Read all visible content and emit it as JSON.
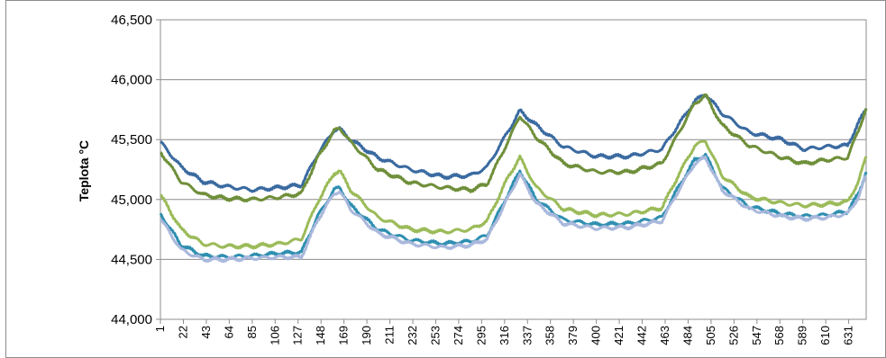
{
  "chart_data": {
    "type": "line",
    "ylabel": "Teplota °C",
    "ylim": [
      44.0,
      46.5
    ],
    "yticks": [
      "44,000",
      "44,500",
      "45,000",
      "45,500",
      "46,000",
      "46,500"
    ],
    "xlim": [
      1,
      647
    ],
    "xticks": [
      "1",
      "22",
      "43",
      "64",
      "85",
      "106",
      "127",
      "148",
      "169",
      "190",
      "211",
      "232",
      "253",
      "274",
      "295",
      "316",
      "337",
      "358",
      "379",
      "400",
      "421",
      "442",
      "463",
      "484",
      "505",
      "526",
      "547",
      "568",
      "589",
      "610",
      "631"
    ],
    "grid": "horizontal",
    "colors": {
      "series_1": "#3a6aa0",
      "series_2": "#6f8f3a",
      "series_3": "#9bbb59",
      "series_4": "#2f8fb0",
      "series_5": "#a9b8dc",
      "grid": "#8c8c8c",
      "frame": "#8c8c8c"
    },
    "series": [
      {
        "color_key": "series_1",
        "x": [
          1,
          20,
          40,
          60,
          85,
          110,
          130,
          145,
          160,
          165,
          175,
          200,
          230,
          260,
          285,
          300,
          320,
          330,
          345,
          370,
          400,
          430,
          460,
          475,
          490,
          500,
          515,
          540,
          570,
          590,
          610,
          630,
          640,
          647
        ],
        "values": [
          45.48,
          45.27,
          45.15,
          45.11,
          45.08,
          45.1,
          45.12,
          45.38,
          45.58,
          45.59,
          45.5,
          45.35,
          45.25,
          45.19,
          45.2,
          45.27,
          45.58,
          45.74,
          45.62,
          45.44,
          45.36,
          45.36,
          45.42,
          45.62,
          45.82,
          45.88,
          45.72,
          45.56,
          45.5,
          45.42,
          45.44,
          45.45,
          45.64,
          45.76
        ]
      },
      {
        "color_key": "series_2",
        "x": [
          1,
          20,
          40,
          60,
          85,
          110,
          130,
          145,
          160,
          165,
          175,
          200,
          230,
          260,
          285,
          300,
          320,
          330,
          345,
          370,
          400,
          430,
          460,
          475,
          490,
          500,
          515,
          540,
          570,
          590,
          610,
          630,
          640,
          647
        ],
        "values": [
          45.4,
          45.15,
          45.04,
          45.01,
          45.0,
          45.02,
          45.05,
          45.35,
          45.57,
          45.6,
          45.48,
          45.25,
          45.14,
          45.1,
          45.08,
          45.13,
          45.5,
          45.7,
          45.52,
          45.3,
          45.23,
          45.23,
          45.3,
          45.55,
          45.8,
          45.87,
          45.62,
          45.45,
          45.35,
          45.3,
          45.33,
          45.35,
          45.58,
          45.76
        ]
      },
      {
        "color_key": "series_3",
        "x": [
          1,
          20,
          40,
          60,
          85,
          110,
          130,
          145,
          160,
          165,
          175,
          200,
          230,
          260,
          285,
          300,
          320,
          330,
          345,
          370,
          400,
          430,
          460,
          475,
          490,
          500,
          515,
          540,
          570,
          590,
          610,
          630,
          640,
          647
        ],
        "values": [
          45.04,
          44.75,
          44.63,
          44.61,
          44.61,
          44.63,
          44.67,
          44.98,
          45.22,
          45.24,
          45.08,
          44.85,
          44.75,
          44.73,
          44.75,
          44.82,
          45.2,
          45.35,
          45.1,
          44.92,
          44.87,
          44.88,
          44.93,
          45.2,
          45.45,
          45.49,
          45.2,
          45.02,
          44.97,
          44.95,
          44.96,
          44.98,
          45.15,
          45.36
        ]
      },
      {
        "color_key": "series_4",
        "x": [
          1,
          20,
          40,
          60,
          85,
          110,
          130,
          145,
          160,
          165,
          175,
          200,
          230,
          260,
          285,
          300,
          320,
          330,
          345,
          370,
          400,
          430,
          460,
          475,
          490,
          500,
          515,
          540,
          570,
          590,
          610,
          630,
          640,
          647
        ],
        "values": [
          44.88,
          44.62,
          44.53,
          44.52,
          44.53,
          44.55,
          44.56,
          44.86,
          45.08,
          45.1,
          44.95,
          44.75,
          44.66,
          44.63,
          44.65,
          44.7,
          45.06,
          45.24,
          45.0,
          44.83,
          44.79,
          44.8,
          44.85,
          45.1,
          45.33,
          45.37,
          45.1,
          44.94,
          44.88,
          44.86,
          44.87,
          44.9,
          45.05,
          45.23
        ]
      },
      {
        "color_key": "series_5",
        "x": [
          1,
          20,
          40,
          60,
          85,
          110,
          130,
          145,
          160,
          165,
          175,
          200,
          230,
          260,
          285,
          300,
          320,
          330,
          345,
          370,
          400,
          430,
          460,
          475,
          490,
          500,
          515,
          540,
          570,
          590,
          610,
          630,
          640,
          647
        ],
        "values": [
          44.84,
          44.58,
          44.5,
          44.5,
          44.51,
          44.52,
          44.52,
          44.83,
          45.05,
          45.07,
          44.92,
          44.72,
          44.63,
          44.6,
          44.62,
          44.67,
          45.03,
          45.21,
          44.97,
          44.8,
          44.76,
          44.77,
          44.82,
          45.07,
          45.3,
          45.35,
          45.08,
          44.92,
          44.86,
          44.84,
          44.85,
          44.88,
          45.02,
          45.2
        ]
      }
    ]
  }
}
